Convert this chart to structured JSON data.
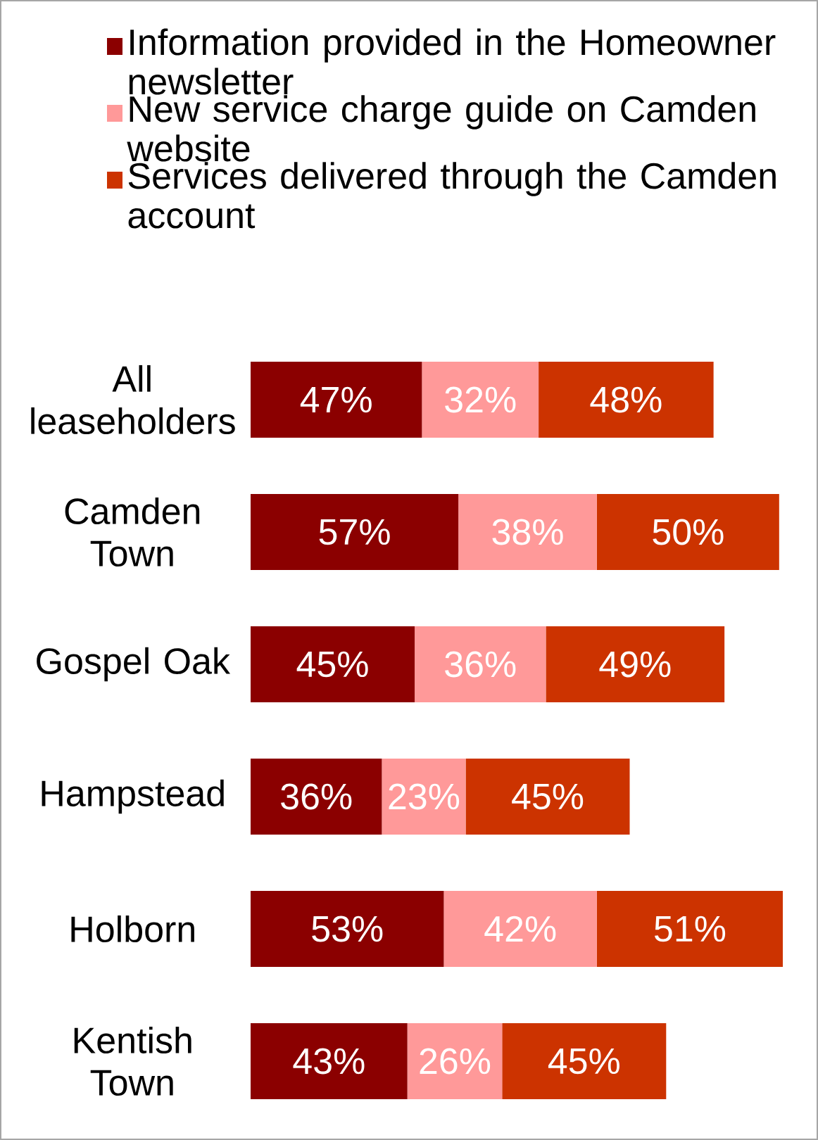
{
  "chart_data": {
    "type": "bar",
    "orientation": "horizontal",
    "stacked": true,
    "categories": [
      "All leaseholders",
      "Camden Town",
      "Gospel Oak",
      "Hampstead",
      "Holborn",
      "Kentish Town"
    ],
    "series": [
      {
        "name": "Information provided in the Homeowner newsletter",
        "color": "#8b0000",
        "values": [
          47,
          57,
          45,
          36,
          53,
          43
        ],
        "value_labels": [
          "47%",
          "57%",
          "45%",
          "36%",
          "53%",
          "43%"
        ]
      },
      {
        "name": "New service charge guide on Camden website",
        "color": "#ff9999",
        "values": [
          32,
          38,
          36,
          23,
          42,
          26
        ],
        "value_labels": [
          "32%",
          "38%",
          "36%",
          "23%",
          "42%",
          "26%"
        ]
      },
      {
        "name": "Services delivered through the Camden account",
        "color": "#cc3300",
        "values": [
          48,
          50,
          49,
          45,
          51,
          45
        ],
        "value_labels": [
          "48%",
          "50%",
          "49%",
          "45%",
          "51%",
          "45%"
        ]
      }
    ],
    "tick_labels": "y",
    "legend": "top"
  }
}
